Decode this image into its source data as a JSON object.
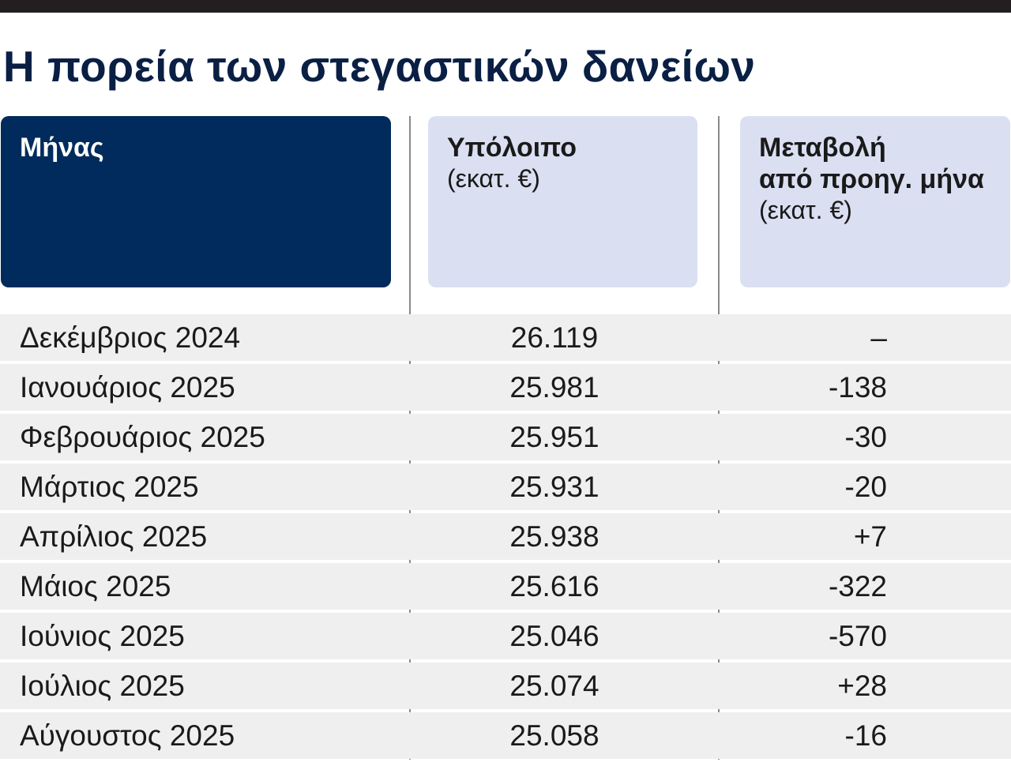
{
  "title": "Η πορεία των στεγαστικών δανείων",
  "chart_data": {
    "type": "table",
    "title": "Η πορεία των στεγαστικών δανείων",
    "columns": [
      {
        "label": "Μήνας",
        "unit": ""
      },
      {
        "label": "Υπόλοιπο",
        "unit": "(εκατ. €)"
      },
      {
        "label": "Μεταβολή από προηγ. μήνα",
        "label_lines": [
          "Μεταβολή",
          "από προηγ. μήνα"
        ],
        "unit": "(εκατ. €)"
      }
    ],
    "rows": [
      {
        "month": "Δεκέμβριος 2024",
        "balance": "26.119",
        "change": "–"
      },
      {
        "month": "Ιανουάριος 2025",
        "balance": "25.981",
        "change": "-138"
      },
      {
        "month": "Φεβρουάριος 2025",
        "balance": "25.951",
        "change": "-30"
      },
      {
        "month": "Μάρτιος 2025",
        "balance": "25.931",
        "change": "-20"
      },
      {
        "month": "Απρίλιος 2025",
        "balance": "25.938",
        "change": "+7"
      },
      {
        "month": "Μάιος 2025",
        "balance": "25.616",
        "change": "-322"
      },
      {
        "month": "Ιούνιος 2025",
        "balance": "25.046",
        "change": "-570"
      },
      {
        "month": "Ιούλιος 2025",
        "balance": "25.074",
        "change": "+28"
      },
      {
        "month": "Αύγουστος 2025",
        "balance": "25.058",
        "change": "-16"
      }
    ]
  }
}
